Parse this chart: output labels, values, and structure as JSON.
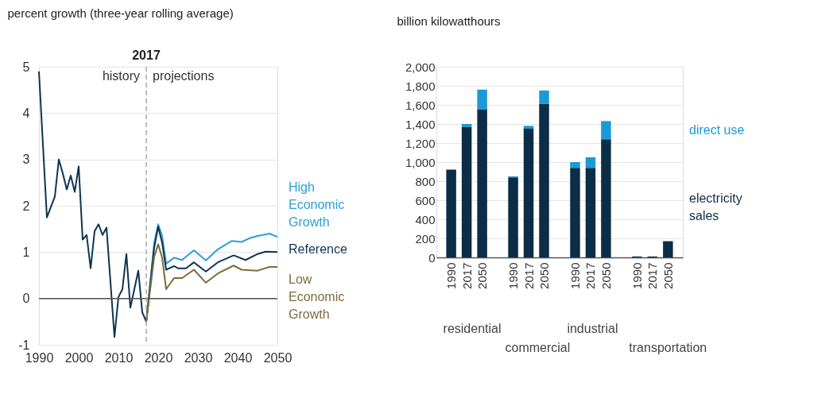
{
  "chart_data": [
    {
      "type": "line",
      "ylabel": "percent growth (three-year rolling average)",
      "xlim": [
        1990,
        2050
      ],
      "xticks": [
        1990,
        2000,
        2010,
        2020,
        2030,
        2040,
        2050
      ],
      "ylim": [
        -1,
        5
      ],
      "yticks": [
        -1,
        0,
        1,
        2,
        3,
        4,
        5
      ],
      "grid": "y",
      "series": [
        {
          "name": "High Economic Growth",
          "color": "#2a9fd8",
          "x": [
            2017,
            2019,
            2020,
            2021,
            2022,
            2024,
            2026,
            2029,
            2032,
            2035,
            2038.5,
            2041,
            2043,
            2045,
            2048,
            2050
          ],
          "values": [
            -0.5,
            1.2,
            1.6,
            1.35,
            0.75,
            0.88,
            0.83,
            1.04,
            0.82,
            1.06,
            1.24,
            1.22,
            1.3,
            1.35,
            1.4,
            1.33
          ]
        },
        {
          "name": "Reference",
          "color": "#0e3550",
          "x": [
            1990,
            1992,
            1994,
            1995,
            1996,
            1997,
            1998,
            1999,
            2000,
            2001,
            2002,
            2003,
            2004,
            2005,
            2006,
            2007,
            2009,
            2010,
            2011,
            2012,
            2013,
            2015,
            2016,
            2017,
            2019,
            2020,
            2021,
            2022,
            2024,
            2025,
            2027,
            2029,
            2032,
            2035,
            2039,
            2042,
            2045,
            2047,
            2050
          ],
          "values": [
            4.9,
            1.75,
            2.2,
            3.0,
            2.7,
            2.35,
            2.65,
            2.3,
            2.85,
            1.27,
            1.37,
            0.65,
            1.45,
            1.6,
            1.37,
            1.53,
            -0.83,
            0.03,
            0.2,
            0.96,
            -0.2,
            0.6,
            -0.3,
            -0.5,
            1.1,
            1.55,
            1.2,
            0.62,
            0.7,
            0.65,
            0.65,
            0.78,
            0.58,
            0.78,
            0.93,
            0.83,
            0.96,
            1.01,
            1.0
          ]
        },
        {
          "name": "Low Economic Growth",
          "color": "#7d6b3c",
          "x": [
            2017,
            2019,
            2020,
            2021,
            2022,
            2024,
            2026,
            2029,
            2032,
            2035,
            2039,
            2041,
            2045,
            2048,
            2050
          ],
          "values": [
            -0.5,
            0.9,
            1.17,
            0.88,
            0.2,
            0.44,
            0.44,
            0.62,
            0.34,
            0.54,
            0.71,
            0.62,
            0.6,
            0.68,
            0.68
          ]
        }
      ],
      "ref_lines": [
        {
          "axis": "x",
          "value": 2017,
          "label": "2017",
          "color": "#a6a6a6",
          "line_style": "dashed"
        }
      ],
      "annotations": [
        "history",
        "projections"
      ]
    },
    {
      "type": "bar",
      "stacked": true,
      "ylabel": "billion kilowatthours",
      "categories": [
        "1990",
        "2017",
        "2050",
        "1990",
        "2017",
        "2050",
        "1990",
        "2017",
        "2050",
        "1990",
        "2017",
        "2050"
      ],
      "ylim": [
        0,
        2000
      ],
      "yticks": [
        0,
        {
          "value": 200,
          "label": "200"
        },
        {
          "value": 400,
          "label": "400"
        },
        {
          "value": 600,
          "label": "600"
        },
        {
          "value": 800,
          "label": "800"
        },
        {
          "value": 1000,
          "label": "1,000"
        },
        {
          "value": 1200,
          "label": "1,200"
        },
        {
          "value": 1400,
          "label": "1,400"
        },
        {
          "value": 1600,
          "label": "1,600"
        },
        {
          "value": 1800,
          "label": "1,800"
        },
        {
          "value": 2000,
          "label": "2,000"
        }
      ],
      "grid": "y",
      "series": [
        {
          "name": "electricity sales",
          "color": "#0b2d47",
          "values": [
            920,
            1370,
            1550,
            840,
            1350,
            1610,
            940,
            940,
            1240,
            10,
            10,
            170
          ]
        },
        {
          "name": "direct use",
          "color": "#1a9ad6",
          "values": [
            0,
            30,
            210,
            10,
            30,
            140,
            60,
            110,
            190,
            0,
            0,
            0
          ]
        }
      ],
      "annotations": [
        "residential",
        "commercial",
        "industrial",
        "transportation"
      ]
    }
  ]
}
